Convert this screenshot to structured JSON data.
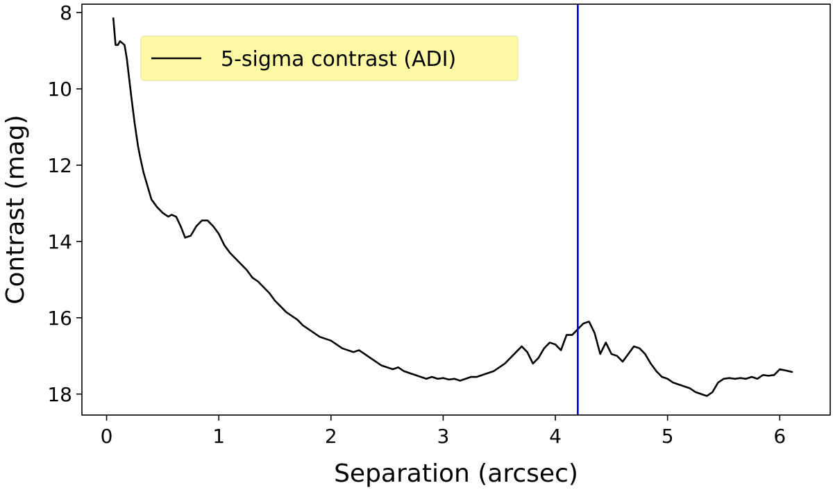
{
  "chart_data": {
    "type": "line",
    "title": "",
    "xlabel": "Separation (arcsec)",
    "ylabel": "Contrast (mag)",
    "xlim": [
      -0.22,
      6.45
    ],
    "ylim": [
      18.55,
      7.78
    ],
    "y_inverted": true,
    "grid": false,
    "xticks": [
      0,
      1,
      2,
      3,
      4,
      5,
      6
    ],
    "yticks": [
      8,
      10,
      12,
      14,
      16,
      18
    ],
    "legend": {
      "placement": "upper-left",
      "background": "#fdf9a5"
    },
    "series": [
      {
        "name": "5-sigma contrast (ADI)",
        "color": "#000000",
        "x": [
          0.06,
          0.07,
          0.08,
          0.1,
          0.12,
          0.14,
          0.16,
          0.18,
          0.2,
          0.22,
          0.25,
          0.28,
          0.3,
          0.33,
          0.36,
          0.4,
          0.45,
          0.5,
          0.55,
          0.58,
          0.62,
          0.66,
          0.7,
          0.75,
          0.8,
          0.85,
          0.9,
          0.95,
          1.0,
          1.05,
          1.1,
          1.15,
          1.2,
          1.25,
          1.3,
          1.35,
          1.4,
          1.45,
          1.5,
          1.55,
          1.6,
          1.65,
          1.7,
          1.75,
          1.8,
          1.85,
          1.9,
          1.95,
          2.0,
          2.05,
          2.1,
          2.15,
          2.2,
          2.25,
          2.3,
          2.35,
          2.4,
          2.45,
          2.5,
          2.55,
          2.6,
          2.65,
          2.7,
          2.75,
          2.8,
          2.85,
          2.9,
          2.95,
          3.0,
          3.05,
          3.1,
          3.15,
          3.2,
          3.25,
          3.3,
          3.35,
          3.4,
          3.45,
          3.5,
          3.55,
          3.6,
          3.65,
          3.7,
          3.75,
          3.8,
          3.85,
          3.9,
          3.95,
          4.0,
          4.05,
          4.1,
          4.15,
          4.2,
          4.25,
          4.3,
          4.35,
          4.4,
          4.45,
          4.5,
          4.55,
          4.6,
          4.65,
          4.7,
          4.75,
          4.8,
          4.85,
          4.9,
          4.95,
          5.0,
          5.05,
          5.1,
          5.15,
          5.2,
          5.25,
          5.3,
          5.35,
          5.4,
          5.45,
          5.5,
          5.55,
          5.6,
          5.65,
          5.7,
          5.75,
          5.8,
          5.85,
          5.9,
          5.95,
          6.0,
          6.05,
          6.11
        ],
        "y": [
          8.15,
          8.5,
          8.85,
          8.85,
          8.75,
          8.8,
          8.85,
          9.2,
          9.7,
          10.2,
          10.9,
          11.5,
          11.8,
          12.2,
          12.5,
          12.9,
          13.1,
          13.25,
          13.35,
          13.3,
          13.35,
          13.6,
          13.9,
          13.85,
          13.6,
          13.45,
          13.45,
          13.6,
          13.8,
          14.1,
          14.3,
          14.45,
          14.6,
          14.75,
          14.95,
          15.05,
          15.2,
          15.35,
          15.55,
          15.7,
          15.85,
          15.95,
          16.05,
          16.2,
          16.3,
          16.4,
          16.5,
          16.55,
          16.6,
          16.7,
          16.8,
          16.85,
          16.9,
          16.85,
          16.95,
          17.05,
          17.15,
          17.25,
          17.3,
          17.35,
          17.3,
          17.4,
          17.45,
          17.5,
          17.55,
          17.6,
          17.55,
          17.6,
          17.58,
          17.62,
          17.6,
          17.65,
          17.6,
          17.55,
          17.55,
          17.5,
          17.45,
          17.4,
          17.3,
          17.2,
          17.05,
          16.9,
          16.75,
          16.9,
          17.2,
          17.05,
          16.8,
          16.65,
          16.7,
          16.85,
          16.45,
          16.45,
          16.3,
          16.15,
          16.1,
          16.4,
          16.95,
          16.65,
          16.95,
          17.0,
          17.15,
          16.95,
          16.75,
          16.8,
          16.95,
          17.2,
          17.4,
          17.55,
          17.6,
          17.7,
          17.75,
          17.8,
          17.85,
          17.95,
          18.0,
          18.05,
          17.95,
          17.7,
          17.6,
          17.58,
          17.6,
          17.58,
          17.6,
          17.55,
          17.6,
          17.5,
          17.52,
          17.5,
          17.35,
          17.38,
          17.42
        ]
      }
    ],
    "vertical_lines": [
      {
        "x": 4.2,
        "color": "#0000cc"
      }
    ]
  }
}
